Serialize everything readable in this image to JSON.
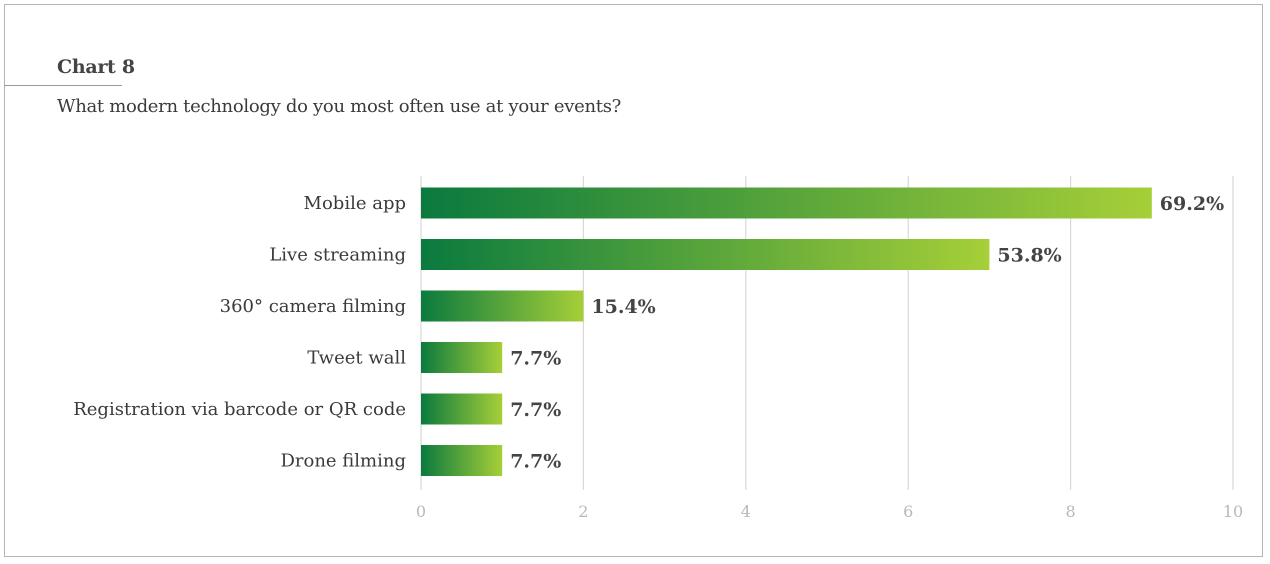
{
  "header": {
    "chart_label": "Chart 8",
    "question": "What modern technology do you most often use at your events?"
  },
  "colors": {
    "bar_start": "#0a7a3e",
    "bar_end": "#a6cf38",
    "grid": "#d9d9d9",
    "tick_text": "#b8b8b8",
    "text": "#3a3a3a"
  },
  "chart_data": {
    "type": "bar",
    "orientation": "horizontal",
    "title": "What modern technology do you most often use at your events?",
    "categories": [
      "Mobile app",
      "Live streaming",
      "360° camera filming",
      "Tweet wall",
      "Registration via barcode or QR code",
      "Drone filming"
    ],
    "values": [
      9,
      7,
      2,
      1,
      1,
      1
    ],
    "data_labels": [
      "69.2%",
      "53.8%",
      "15.4%",
      "7.7%",
      "7.7%",
      "7.7%"
    ],
    "xlim": [
      0,
      10
    ],
    "xticks": [
      "0",
      "2",
      "4",
      "6",
      "8",
      "10"
    ],
    "xlabel": "",
    "ylabel": "",
    "grid": "vertical",
    "legend": "none"
  }
}
